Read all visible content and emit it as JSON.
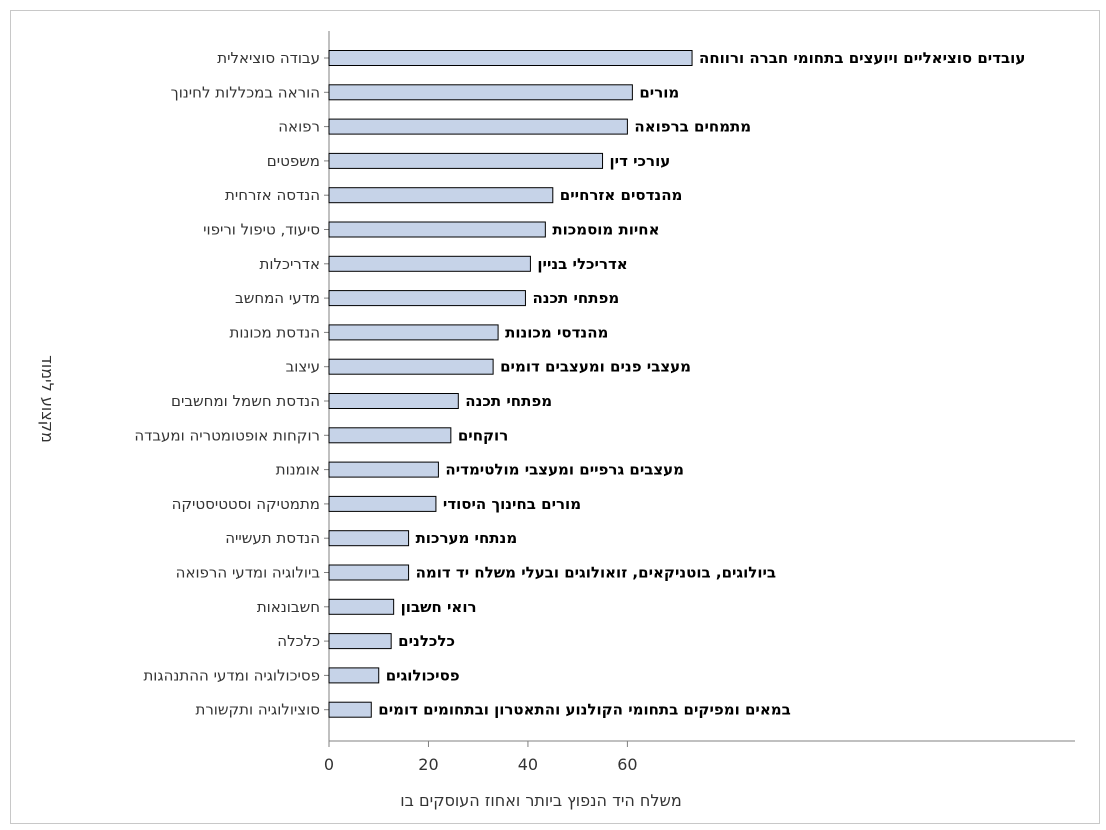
{
  "chart_data": {
    "type": "bar",
    "orientation": "horizontal",
    "xlabel": "משלח היד הנפוץ ביותר ואחוז העוסקים בו",
    "ylabel": "מקצוע לימוד",
    "xlim": [
      0,
      150
    ],
    "xticks": [
      "0",
      "20",
      "40",
      "60"
    ],
    "grid": false,
    "bar_color": "#c6d3e8",
    "bar_edge_color": "#000000",
    "categories": [
      "עבודה סוציאלית",
      "הוראה במכללות לחינוך",
      "רפואה",
      "משפטים",
      "הנדסה אזרחית",
      "סיעוד, טיפול וריפוי",
      "אדריכלות",
      "מדעי המחשב",
      "הנדסת מכונות",
      "עיצוב",
      "הנדסת חשמל ומחשבים",
      "רוקחות אופטומטריה ומעבדה",
      "אומנות",
      "מתמטיקה וסטטיסטיקה",
      "הנדסת תעשייה",
      "ביולוגיה ומדעי הרפואה",
      "חשבונאות",
      "כלכלה",
      "פסיכולוגיה ומדעי ההתנהגות",
      "סוציולוגיה ותקשורת"
    ],
    "bar_labels": [
      "עובדים סוציאליים ויועצים בתחומי חברה ורווחה",
      "מורים",
      "מתמחים ברפואה",
      "עורכי דין",
      "מהנדסים אזרחיים",
      "אחיות מוסמכות",
      "אדריכלי בניין",
      "מפתחי תכנה",
      "מהנדסי מכונות",
      "מעצבי פנים ומעצבים דומים",
      "מפתחי תכנה",
      "רוקחים",
      "מעצבים גרפיים ומעצבי מולטימדיה",
      "מורים בחינוך היסודי",
      "מנתחי מערכות",
      "ביולוגים, בוטניקאים, זואולוגים ובעלי משלח יד דומה",
      "רואי חשבון",
      "כלכלנים",
      "פסיכולוגים",
      "במאים ומפיקים בתחומי הקולנוע והתאטרון ובתחומים דומים"
    ],
    "values": [
      73,
      61,
      60,
      55,
      45,
      43.5,
      40.5,
      39.5,
      34,
      33,
      26,
      24.5,
      22,
      21.5,
      16,
      16,
      13,
      12.5,
      10,
      8.5
    ]
  }
}
